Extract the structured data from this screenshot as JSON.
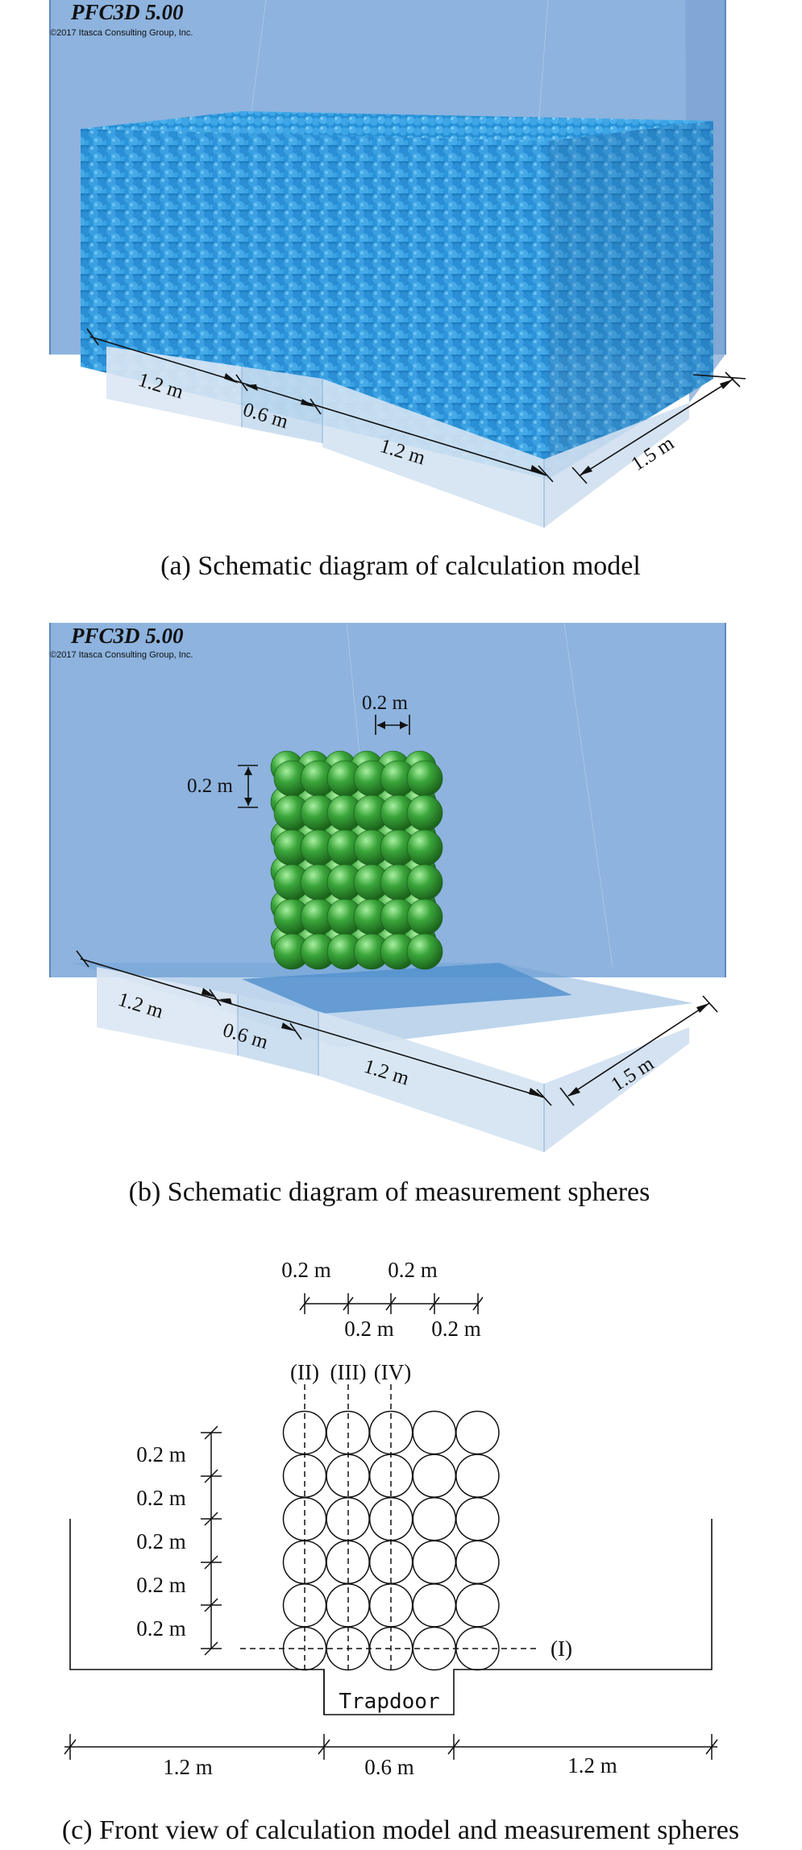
{
  "software": {
    "name": "PFC3D 5.00",
    "copyright": "©2017 Itasca Consulting Group, Inc."
  },
  "panel_a": {
    "caption": "(a) Schematic diagram of calculation model",
    "dims": {
      "left": "1.2 m",
      "middle": "0.6 m",
      "right": "1.2 m",
      "depth": "1.5 m"
    }
  },
  "panel_b": {
    "caption": "(b) Schematic diagram of measurement spheres",
    "dims": {
      "left": "1.2 m",
      "middle": "0.6 m",
      "right": "1.2 m",
      "depth": "1.5 m",
      "sphere_h": "0.2 m",
      "sphere_v": "0.2 m"
    },
    "sphere_grid": {
      "columns": 6,
      "rows": 6
    }
  },
  "panel_c": {
    "caption": "(c) Front view of calculation model and measurement spheres",
    "top_dims_upper": [
      "0.2 m",
      "0.2 m"
    ],
    "top_dims_lower": [
      "0.2 m",
      "0.2 m"
    ],
    "vertical_dims": [
      "0.2 m",
      "0.2 m",
      "0.2 m",
      "0.2 m",
      "0.2 m"
    ],
    "line_labels": [
      "(II)",
      "(III)",
      "(IV)",
      "(I)"
    ],
    "trapdoor": "Trapdoor",
    "bottom_dims": [
      "1.2 m",
      "0.6 m",
      "1.2 m"
    ],
    "circle_grid": {
      "columns": 5,
      "rows": 6
    }
  },
  "colors": {
    "box_blue": "#7ea8d6",
    "particle_blue": "#2f93d6",
    "sphere_green": "#3aa53a"
  }
}
